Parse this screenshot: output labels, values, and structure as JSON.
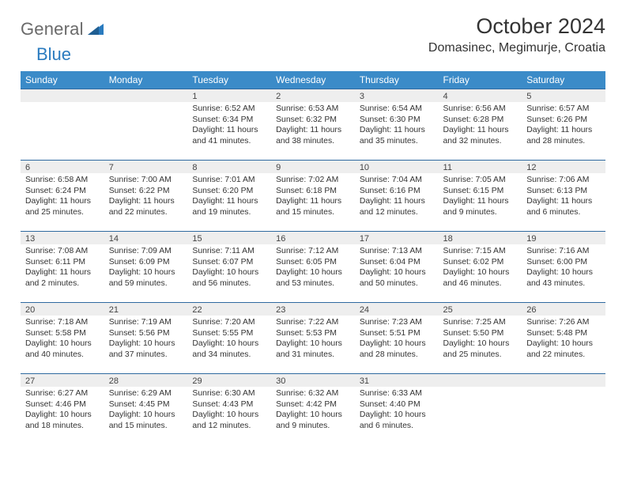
{
  "logo": {
    "word1": "General",
    "word2": "Blue"
  },
  "title": "October 2024",
  "location": "Domasinec, Megimurje, Croatia",
  "colors": {
    "header_bg": "#3b8bc8",
    "header_text": "#ffffff",
    "daynum_bg": "#eeeeee",
    "daynum_border": "#2f6aa0",
    "body_text": "#333333",
    "logo_gray": "#6a6a6a",
    "logo_blue": "#2a7bbf"
  },
  "day_headers": [
    "Sunday",
    "Monday",
    "Tuesday",
    "Wednesday",
    "Thursday",
    "Friday",
    "Saturday"
  ],
  "layout": {
    "first_weekday_index": 2,
    "days_in_month": 31
  },
  "days": {
    "1": {
      "sunrise": "6:52 AM",
      "sunset": "6:34 PM",
      "daylight": "11 hours and 41 minutes."
    },
    "2": {
      "sunrise": "6:53 AM",
      "sunset": "6:32 PM",
      "daylight": "11 hours and 38 minutes."
    },
    "3": {
      "sunrise": "6:54 AM",
      "sunset": "6:30 PM",
      "daylight": "11 hours and 35 minutes."
    },
    "4": {
      "sunrise": "6:56 AM",
      "sunset": "6:28 PM",
      "daylight": "11 hours and 32 minutes."
    },
    "5": {
      "sunrise": "6:57 AM",
      "sunset": "6:26 PM",
      "daylight": "11 hours and 28 minutes."
    },
    "6": {
      "sunrise": "6:58 AM",
      "sunset": "6:24 PM",
      "daylight": "11 hours and 25 minutes."
    },
    "7": {
      "sunrise": "7:00 AM",
      "sunset": "6:22 PM",
      "daylight": "11 hours and 22 minutes."
    },
    "8": {
      "sunrise": "7:01 AM",
      "sunset": "6:20 PM",
      "daylight": "11 hours and 19 minutes."
    },
    "9": {
      "sunrise": "7:02 AM",
      "sunset": "6:18 PM",
      "daylight": "11 hours and 15 minutes."
    },
    "10": {
      "sunrise": "7:04 AM",
      "sunset": "6:16 PM",
      "daylight": "11 hours and 12 minutes."
    },
    "11": {
      "sunrise": "7:05 AM",
      "sunset": "6:15 PM",
      "daylight": "11 hours and 9 minutes."
    },
    "12": {
      "sunrise": "7:06 AM",
      "sunset": "6:13 PM",
      "daylight": "11 hours and 6 minutes."
    },
    "13": {
      "sunrise": "7:08 AM",
      "sunset": "6:11 PM",
      "daylight": "11 hours and 2 minutes."
    },
    "14": {
      "sunrise": "7:09 AM",
      "sunset": "6:09 PM",
      "daylight": "10 hours and 59 minutes."
    },
    "15": {
      "sunrise": "7:11 AM",
      "sunset": "6:07 PM",
      "daylight": "10 hours and 56 minutes."
    },
    "16": {
      "sunrise": "7:12 AM",
      "sunset": "6:05 PM",
      "daylight": "10 hours and 53 minutes."
    },
    "17": {
      "sunrise": "7:13 AM",
      "sunset": "6:04 PM",
      "daylight": "10 hours and 50 minutes."
    },
    "18": {
      "sunrise": "7:15 AM",
      "sunset": "6:02 PM",
      "daylight": "10 hours and 46 minutes."
    },
    "19": {
      "sunrise": "7:16 AM",
      "sunset": "6:00 PM",
      "daylight": "10 hours and 43 minutes."
    },
    "20": {
      "sunrise": "7:18 AM",
      "sunset": "5:58 PM",
      "daylight": "10 hours and 40 minutes."
    },
    "21": {
      "sunrise": "7:19 AM",
      "sunset": "5:56 PM",
      "daylight": "10 hours and 37 minutes."
    },
    "22": {
      "sunrise": "7:20 AM",
      "sunset": "5:55 PM",
      "daylight": "10 hours and 34 minutes."
    },
    "23": {
      "sunrise": "7:22 AM",
      "sunset": "5:53 PM",
      "daylight": "10 hours and 31 minutes."
    },
    "24": {
      "sunrise": "7:23 AM",
      "sunset": "5:51 PM",
      "daylight": "10 hours and 28 minutes."
    },
    "25": {
      "sunrise": "7:25 AM",
      "sunset": "5:50 PM",
      "daylight": "10 hours and 25 minutes."
    },
    "26": {
      "sunrise": "7:26 AM",
      "sunset": "5:48 PM",
      "daylight": "10 hours and 22 minutes."
    },
    "27": {
      "sunrise": "6:27 AM",
      "sunset": "4:46 PM",
      "daylight": "10 hours and 18 minutes."
    },
    "28": {
      "sunrise": "6:29 AM",
      "sunset": "4:45 PM",
      "daylight": "10 hours and 15 minutes."
    },
    "29": {
      "sunrise": "6:30 AM",
      "sunset": "4:43 PM",
      "daylight": "10 hours and 12 minutes."
    },
    "30": {
      "sunrise": "6:32 AM",
      "sunset": "4:42 PM",
      "daylight": "10 hours and 9 minutes."
    },
    "31": {
      "sunrise": "6:33 AM",
      "sunset": "4:40 PM",
      "daylight": "10 hours and 6 minutes."
    }
  },
  "labels": {
    "sunrise": "Sunrise:",
    "sunset": "Sunset:",
    "daylight": "Daylight:"
  }
}
